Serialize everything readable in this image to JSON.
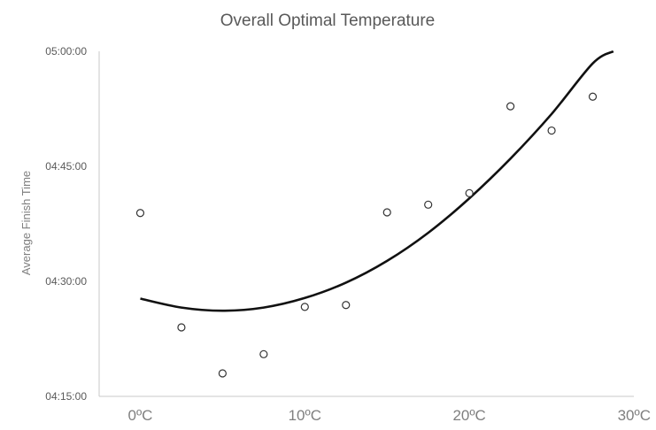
{
  "chart_data": {
    "type": "scatter",
    "title": "Overall Optimal Temperature",
    "xlabel": "",
    "ylabel": "Average Finish Time",
    "x_ticks": [
      "0ºC",
      "10ºC",
      "20ºC",
      "30ºC"
    ],
    "y_ticks": [
      "04:15:00",
      "04:30:00",
      "04:45:00",
      "05:00:00"
    ],
    "xlim": [
      -2.5,
      30
    ],
    "ylim": [
      "04:15:00",
      "05:00:00"
    ],
    "grid": false,
    "legend": "none",
    "trendline": "polynomial",
    "series": [
      {
        "points": [
          {
            "x": 0,
            "y": "04:38:55"
          },
          {
            "x": 2.5,
            "y": "04:24:00"
          },
          {
            "x": 5,
            "y": "04:18:00"
          },
          {
            "x": 7.5,
            "y": "04:20:30"
          },
          {
            "x": 10,
            "y": "04:26:40"
          },
          {
            "x": 12.5,
            "y": "04:26:55"
          },
          {
            "x": 15,
            "y": "04:39:00"
          },
          {
            "x": 17.5,
            "y": "04:40:00"
          },
          {
            "x": 20,
            "y": "04:41:30"
          },
          {
            "x": 22.5,
            "y": "04:52:50"
          },
          {
            "x": 25,
            "y": "04:49:40"
          },
          {
            "x": 27.5,
            "y": "04:54:05"
          }
        ],
        "trend": [
          {
            "x": 0,
            "y": "04:27:45"
          },
          {
            "x": 2.5,
            "y": "04:26:35"
          },
          {
            "x": 5,
            "y": "04:26:10"
          },
          {
            "x": 7.5,
            "y": "04:26:35"
          },
          {
            "x": 10,
            "y": "04:27:50"
          },
          {
            "x": 12.5,
            "y": "04:29:50"
          },
          {
            "x": 15,
            "y": "04:32:40"
          },
          {
            "x": 17.5,
            "y": "04:36:20"
          },
          {
            "x": 20,
            "y": "04:40:50"
          },
          {
            "x": 22.5,
            "y": "04:46:00"
          },
          {
            "x": 25,
            "y": "04:51:50"
          },
          {
            "x": 27.5,
            "y": "04:58:25"
          },
          {
            "x": 28.75,
            "y": "05:00:00"
          }
        ]
      }
    ],
    "colors": {
      "points": "#333333",
      "trend": "#111111",
      "axis": "#c8c8c8",
      "text": "#595959"
    }
  }
}
